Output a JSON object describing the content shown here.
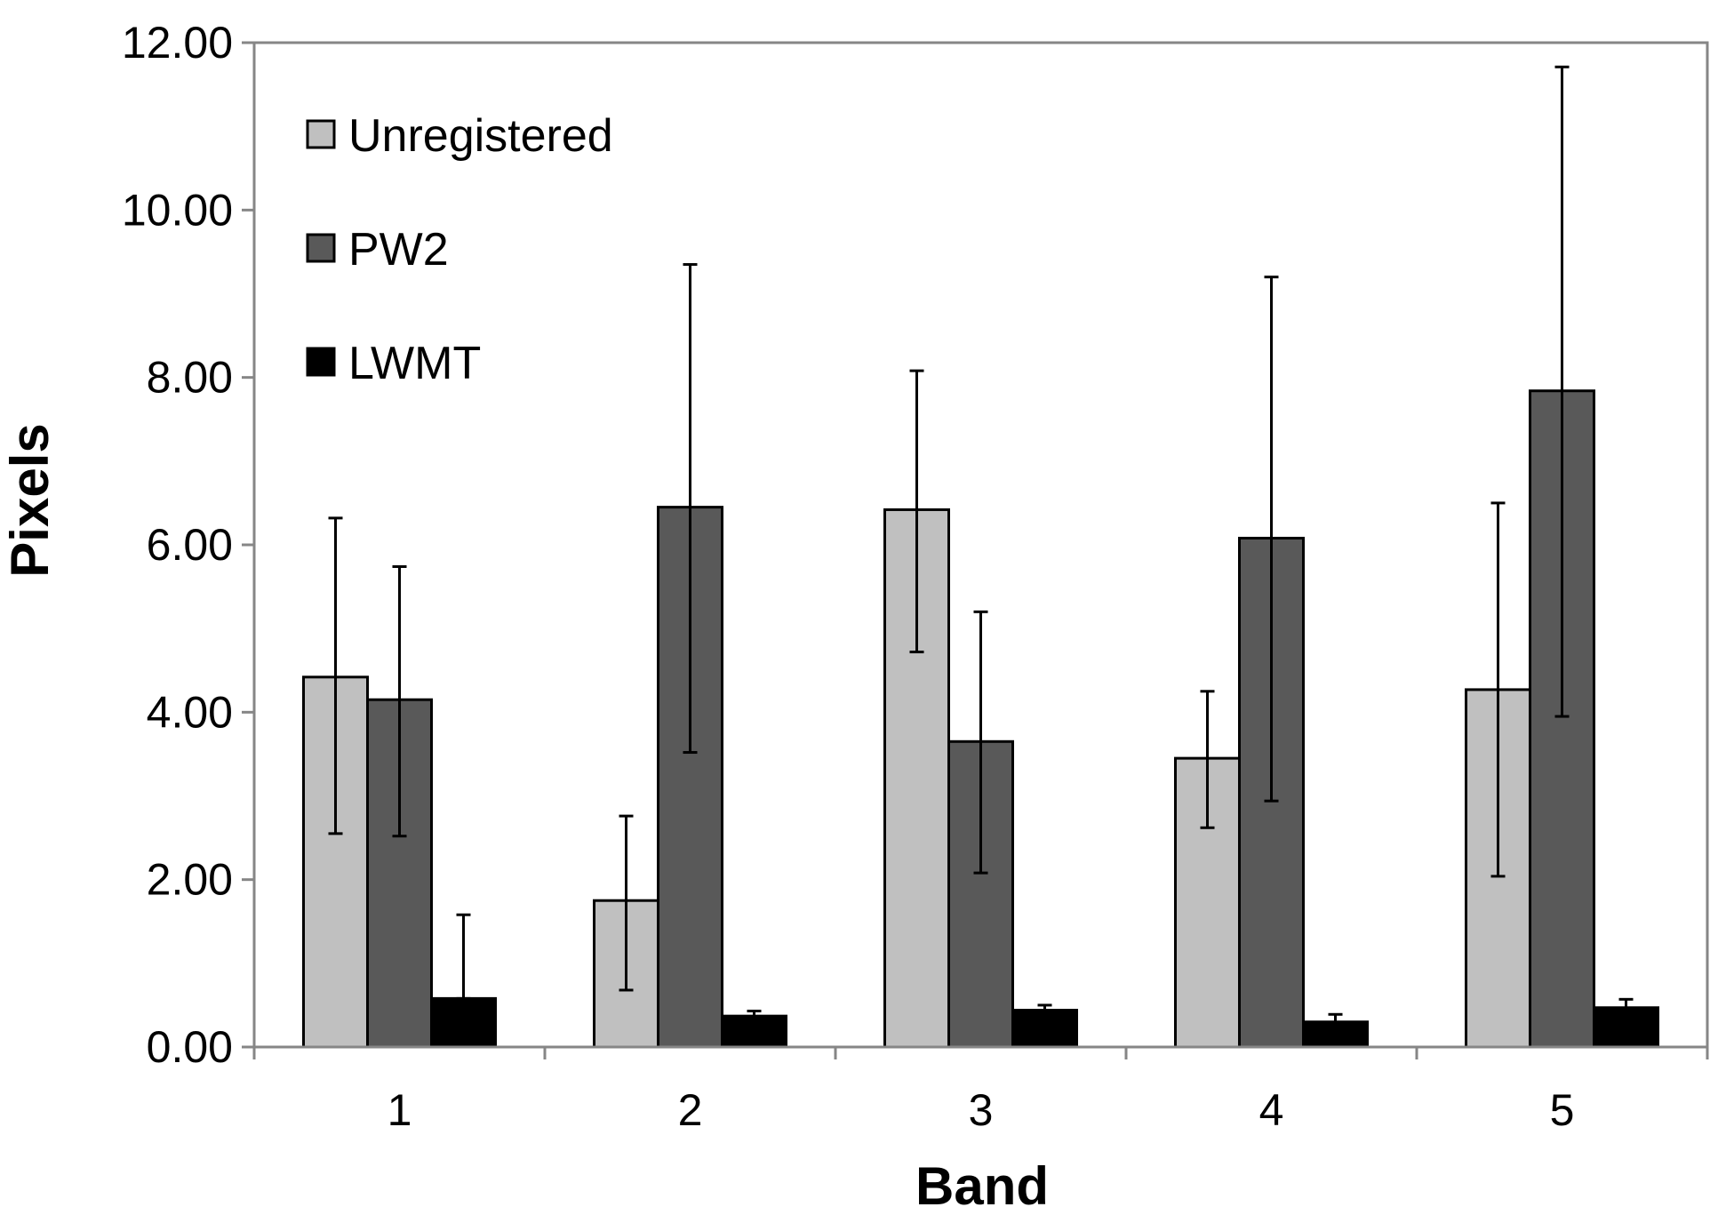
{
  "chart_data": {
    "type": "bar",
    "title": "",
    "xlabel": "Band",
    "ylabel": "Pixels",
    "categories": [
      "1",
      "2",
      "3",
      "4",
      "5"
    ],
    "ylim": [
      0,
      12
    ],
    "y_ticks": [
      "0.00",
      "2.00",
      "4.00",
      "6.00",
      "8.00",
      "10.00",
      "12.00"
    ],
    "grid": false,
    "legend_position": "top-left",
    "series": [
      {
        "name": "Unregistered",
        "color": "#c0c0c0",
        "values": [
          4.42,
          1.75,
          6.42,
          3.45,
          4.27
        ],
        "err_low": [
          2.55,
          0.68,
          4.72,
          2.62,
          2.04
        ],
        "err_high": [
          6.32,
          2.76,
          8.08,
          4.25,
          6.5
        ]
      },
      {
        "name": "PW2",
        "color": "#595959",
        "values": [
          4.15,
          6.45,
          3.65,
          6.08,
          7.84
        ],
        "err_low": [
          2.52,
          3.52,
          2.08,
          2.94,
          3.95
        ],
        "err_high": [
          5.74,
          9.35,
          5.2,
          9.2,
          11.71
        ]
      },
      {
        "name": "LWMT",
        "color": "#000000",
        "values": [
          0.58,
          0.37,
          0.44,
          0.3,
          0.47
        ],
        "err_low": [
          0.58,
          0.33,
          0.39,
          0.23,
          0.4
        ],
        "err_high": [
          1.58,
          0.43,
          0.5,
          0.39,
          0.57
        ]
      }
    ]
  }
}
